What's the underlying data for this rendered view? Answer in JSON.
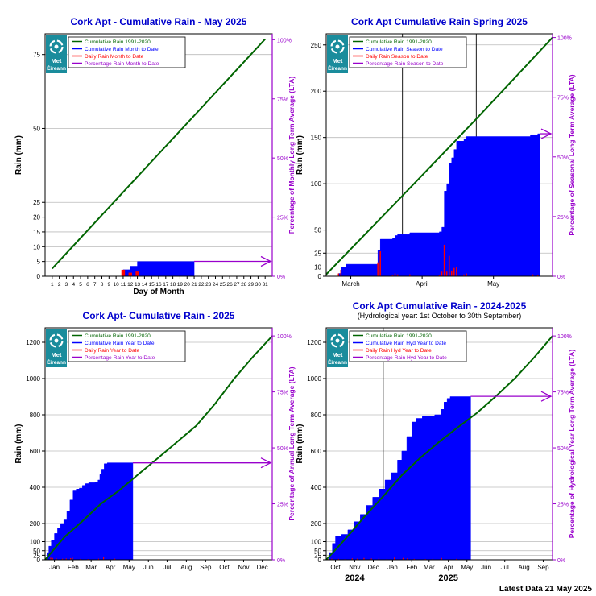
{
  "colors": {
    "title": "#0000cc",
    "lta": "#006400",
    "cum": "#0000ff",
    "daily": "#ff0000",
    "pct": "#9900cc",
    "logo": "#1a8c9c"
  },
  "logo": {
    "line1": "Met",
    "line2": "Éireann"
  },
  "footer": {
    "latest": "Latest Data 21 May 2025"
  },
  "chart_data": [
    {
      "type": "area",
      "title": "Cork Apt - Cumulative Rain -  May   2025",
      "subtitle": "",
      "xlabel": "Day of Month",
      "ylabel": "Rain (mm)",
      "y2label": "Percentage of Monthly Long Term Average (LTA)",
      "xlim": [
        0,
        32
      ],
      "ylim": [
        0,
        82
      ],
      "x_ticks": [
        1,
        2,
        3,
        4,
        5,
        6,
        7,
        8,
        9,
        10,
        11,
        12,
        13,
        14,
        15,
        16,
        17,
        18,
        19,
        20,
        21,
        22,
        23,
        24,
        25,
        26,
        27,
        28,
        29,
        30,
        31
      ],
      "y_ticks": [
        0,
        5,
        10,
        15,
        20,
        25,
        50,
        75
      ],
      "y2_ticks": [
        "0%",
        "25%",
        "50%",
        "75%",
        "100%"
      ],
      "lta_total": 80,
      "legend": [
        "Cumulative Rain 1991-2020",
        "Cumulative Rain Month to Date",
        "Daily Rain Month to Date",
        "Percentage Rain Month to Date"
      ],
      "legend_position": "top-left",
      "grid": true,
      "lta_curve": [
        [
          1,
          2.6
        ],
        [
          31,
          80.2
        ]
      ],
      "cumulative": [
        [
          10,
          0
        ],
        [
          11,
          2.2
        ],
        [
          12,
          3.4
        ],
        [
          13,
          5.0
        ],
        [
          21,
          5.0
        ]
      ],
      "daily": [
        [
          11,
          2.2
        ],
        [
          12,
          1.2
        ],
        [
          13,
          1.6
        ]
      ],
      "percentage": 6.3,
      "month_labels": [],
      "year_labels": [],
      "vlines": []
    },
    {
      "type": "area",
      "title": "Cork Apt Cumulative Rain Spring 2025",
      "subtitle": "",
      "xlabel": "",
      "ylabel": "Rain (mm)",
      "y2label": "Percentage of Seasonal Long Term Average (LTA)",
      "xlim": [
        0,
        92
      ],
      "ylim": [
        0,
        262
      ],
      "x_ticks": [],
      "y_ticks": [
        0,
        10,
        25,
        50,
        100,
        150,
        200,
        250
      ],
      "y2_ticks": [
        "0%",
        "25%",
        "50%",
        "75%",
        "100%"
      ],
      "lta_total": 258,
      "legend": [
        "Cumulative Rain 1991-2020",
        "Cumulative Rain Season to Date",
        "Daily Rain Season to Date",
        "Percentage Rain Season to Date"
      ],
      "legend_position": "top-left",
      "grid": true,
      "lta_curve": [
        [
          0,
          2
        ],
        [
          31,
          87
        ],
        [
          61,
          170
        ],
        [
          92,
          258
        ]
      ],
      "cumulative": [
        [
          4,
          0
        ],
        [
          5,
          3
        ],
        [
          6,
          10
        ],
        [
          8,
          13
        ],
        [
          20,
          13
        ],
        [
          21,
          28
        ],
        [
          22,
          40
        ],
        [
          27,
          41
        ],
        [
          28,
          44
        ],
        [
          29,
          45
        ],
        [
          33,
          45
        ],
        [
          34,
          47
        ],
        [
          45,
          47
        ],
        [
          46,
          48
        ],
        [
          47,
          53
        ],
        [
          48,
          92
        ],
        [
          49,
          100
        ],
        [
          50,
          122
        ],
        [
          51,
          128
        ],
        [
          52,
          137
        ],
        [
          53,
          146
        ],
        [
          56,
          148
        ],
        [
          57,
          151
        ],
        [
          82,
          151
        ],
        [
          83,
          153
        ],
        [
          86,
          154
        ],
        [
          87,
          154
        ]
      ],
      "daily": [
        [
          5,
          3
        ],
        [
          6,
          7
        ],
        [
          21,
          15
        ],
        [
          22,
          27
        ],
        [
          27,
          1
        ],
        [
          28,
          3
        ],
        [
          29,
          2
        ],
        [
          34,
          2
        ],
        [
          46,
          1
        ],
        [
          47,
          5
        ],
        [
          48,
          34
        ],
        [
          49,
          5
        ],
        [
          50,
          22
        ],
        [
          51,
          6
        ],
        [
          52,
          9
        ],
        [
          53,
          10
        ],
        [
          56,
          2
        ],
        [
          57,
          3
        ],
        [
          84,
          2
        ],
        [
          86,
          1
        ]
      ],
      "percentage": 59.7,
      "month_labels": [
        {
          "label": "March",
          "x": 10
        },
        {
          "label": "April",
          "x": 39
        },
        {
          "label": "May",
          "x": 68
        }
      ],
      "year_labels": [],
      "vlines": [
        31,
        61
      ]
    },
    {
      "type": "area",
      "title": "Cork Apt- Cumulative Rain - 2025",
      "subtitle": "",
      "xlabel": "",
      "ylabel": "Rain (mm)",
      "y2label": "Percentage of Annual Long Term Average (LTA)",
      "xlim": [
        0,
        365
      ],
      "ylim": [
        0,
        1280
      ],
      "x_ticks": [],
      "y_ticks": [
        0,
        25,
        50,
        100,
        200,
        400,
        600,
        800,
        1000,
        1200
      ],
      "y2_ticks": [
        "0%",
        "25%",
        "50%",
        "75%",
        "100%"
      ],
      "lta_total": 1235,
      "legend": [
        "Cumulative Rain 1991-2020",
        "Cumulative Rain Year to Date",
        "Daily Rain Year to Date",
        "Percentage Rain Year to Date"
      ],
      "legend_position": "top-left",
      "grid": true,
      "lta_curve": [
        [
          0,
          0
        ],
        [
          31,
          125
        ],
        [
          59,
          210
        ],
        [
          90,
          310
        ],
        [
          120,
          385
        ],
        [
          151,
          475
        ],
        [
          181,
          560
        ],
        [
          212,
          650
        ],
        [
          243,
          740
        ],
        [
          273,
          860
        ],
        [
          304,
          1000
        ],
        [
          334,
          1120
        ],
        [
          365,
          1235
        ]
      ],
      "cumulative": [
        [
          0,
          0
        ],
        [
          3,
          40
        ],
        [
          6,
          75
        ],
        [
          10,
          110
        ],
        [
          15,
          145
        ],
        [
          20,
          175
        ],
        [
          25,
          200
        ],
        [
          30,
          220
        ],
        [
          35,
          270
        ],
        [
          40,
          330
        ],
        [
          45,
          380
        ],
        [
          50,
          390
        ],
        [
          55,
          395
        ],
        [
          60,
          410
        ],
        [
          65,
          420
        ],
        [
          70,
          425
        ],
        [
          80,
          430
        ],
        [
          85,
          440
        ],
        [
          88,
          470
        ],
        [
          91,
          500
        ],
        [
          95,
          530
        ],
        [
          100,
          535
        ],
        [
          141,
          535
        ]
      ],
      "daily": [
        [
          2,
          5
        ],
        [
          9,
          12
        ],
        [
          12,
          10
        ],
        [
          18,
          8
        ],
        [
          28,
          6
        ],
        [
          34,
          7
        ],
        [
          41,
          9
        ],
        [
          44,
          11
        ],
        [
          57,
          5
        ],
        [
          69,
          4
        ],
        [
          86,
          6
        ],
        [
          94,
          15
        ],
        [
          104,
          3
        ],
        [
          112,
          6
        ]
      ],
      "percentage": 43.3,
      "month_labels": [
        {
          "label": "Jan",
          "x": 15
        },
        {
          "label": "Feb",
          "x": 45
        },
        {
          "label": "Mar",
          "x": 74
        },
        {
          "label": "Apr",
          "x": 105
        },
        {
          "label": "May",
          "x": 135
        },
        {
          "label": "Jun",
          "x": 166
        },
        {
          "label": "Jul",
          "x": 196
        },
        {
          "label": "Aug",
          "x": 227
        },
        {
          "label": "Sep",
          "x": 258
        },
        {
          "label": "Oct",
          "x": 288
        },
        {
          "label": "Nov",
          "x": 319
        },
        {
          "label": "Dec",
          "x": 349
        }
      ],
      "year_labels": [],
      "vlines": []
    },
    {
      "type": "area",
      "title": "Cork Apt Cumulative Rain - 2024-2025",
      "subtitle": "(Hydrological year: 1st October to 30th September)",
      "xlabel": "",
      "ylabel": "Rain (mm)",
      "y2label": "Percentage of Hydrological Year Long Term Average (LTA)",
      "xlim": [
        0,
        365
      ],
      "ylim": [
        0,
        1280
      ],
      "x_ticks": [],
      "y_ticks": [
        0,
        25,
        50,
        100,
        200,
        400,
        600,
        800,
        1000,
        1200
      ],
      "y2_ticks": [
        "0%",
        "25%",
        "50%",
        "75%",
        "100%"
      ],
      "lta_total": 1235,
      "legend": [
        "Cumulative Rain 1991-2020",
        "Cumulative Rain Hyd Year to Date",
        "Daily Rain Hyd Year to Date",
        "Percentage Rain Hyd Year to Date"
      ],
      "legend_position": "top-left",
      "grid": true,
      "lta_curve": [
        [
          0,
          0
        ],
        [
          31,
          115
        ],
        [
          61,
          235
        ],
        [
          92,
          350
        ],
        [
          123,
          470
        ],
        [
          151,
          560
        ],
        [
          182,
          650
        ],
        [
          212,
          730
        ],
        [
          243,
          810
        ],
        [
          273,
          900
        ],
        [
          304,
          1000
        ],
        [
          335,
          1115
        ],
        [
          365,
          1235
        ]
      ],
      "cumulative": [
        [
          0,
          0
        ],
        [
          5,
          40
        ],
        [
          10,
          90
        ],
        [
          15,
          130
        ],
        [
          25,
          140
        ],
        [
          35,
          165
        ],
        [
          45,
          210
        ],
        [
          55,
          250
        ],
        [
          65,
          300
        ],
        [
          75,
          345
        ],
        [
          85,
          390
        ],
        [
          95,
          440
        ],
        [
          105,
          480
        ],
        [
          115,
          550
        ],
        [
          122,
          600
        ],
        [
          130,
          680
        ],
        [
          138,
          760
        ],
        [
          145,
          780
        ],
        [
          155,
          790
        ],
        [
          175,
          800
        ],
        [
          185,
          830
        ],
        [
          190,
          870
        ],
        [
          195,
          890
        ],
        [
          200,
          900
        ],
        [
          233,
          900
        ]
      ],
      "daily": [
        [
          3,
          4
        ],
        [
          9,
          6
        ],
        [
          20,
          5
        ],
        [
          30,
          3
        ],
        [
          42,
          8
        ],
        [
          50,
          6
        ],
        [
          61,
          10
        ],
        [
          73,
          7
        ],
        [
          85,
          9
        ],
        [
          98,
          5
        ],
        [
          110,
          12
        ],
        [
          124,
          10
        ],
        [
          131,
          8
        ],
        [
          142,
          5
        ],
        [
          160,
          4
        ],
        [
          172,
          6
        ],
        [
          186,
          10
        ],
        [
          198,
          3
        ],
        [
          210,
          5
        ]
      ],
      "percentage": 73.0,
      "month_labels": [
        {
          "label": "Oct",
          "x": 15
        },
        {
          "label": "Nov",
          "x": 46
        },
        {
          "label": "Dec",
          "x": 76
        },
        {
          "label": "Jan",
          "x": 107
        },
        {
          "label": "Feb",
          "x": 138
        },
        {
          "label": "Mar",
          "x": 166
        },
        {
          "label": "Apr",
          "x": 197
        },
        {
          "label": "May",
          "x": 227
        },
        {
          "label": "Jun",
          "x": 258
        },
        {
          "label": "Jul",
          "x": 288
        },
        {
          "label": "Aug",
          "x": 319
        },
        {
          "label": "Sep",
          "x": 350
        }
      ],
      "year_labels": [
        {
          "label": "2024",
          "x": 46
        },
        {
          "label": "2025",
          "x": 197
        }
      ],
      "vlines": [
        92
      ]
    }
  ]
}
